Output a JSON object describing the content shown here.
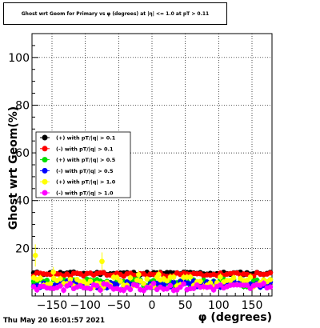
{
  "chart_data": {
    "type": "scatter",
    "title": "Ghost wrt Geom for Primary vs φ (degrees) at |η| <= 1.0 at pT > 0.11",
    "xlabel": "φ (degrees)",
    "ylabel": "Ghost wrt Geom(%)",
    "xlim": [
      -180,
      180
    ],
    "ylim": [
      0,
      110
    ],
    "x_ticks": [
      -150,
      -100,
      -50,
      0,
      50,
      100,
      150
    ],
    "x_tick_labels": [
      "−150",
      "−100",
      "−50",
      "0",
      "50",
      "100",
      "150"
    ],
    "y_ticks": [
      20,
      40,
      60,
      80,
      100
    ],
    "y_tick_labels": [
      "20",
      "40",
      "60",
      "80",
      "100"
    ],
    "grid": true,
    "legend_placement": "left-center",
    "series": [
      {
        "name": "(+) with pT/|q| > 0.1",
        "color": "#000000",
        "base": 9.5,
        "amp": 0.6,
        "seed": 11
      },
      {
        "name": "(-) with pT/|q| > 0.1",
        "color": "#ff0000",
        "base": 9.0,
        "amp": 0.8,
        "seed": 23
      },
      {
        "name": "(+) with pT/|q| > 0.5",
        "color": "#00dd00",
        "base": 5.5,
        "amp": 1.6,
        "seed": 37
      },
      {
        "name": "(-) with pT/|q| > 0.5",
        "color": "#0000ff",
        "base": 4.8,
        "amp": 1.4,
        "seed": 51
      },
      {
        "name": "(+) with pT/|q| > 1.0",
        "color": "#ffff00",
        "base": 6.0,
        "amp": 2.2,
        "seed": 67,
        "outliers": [
          [
            -175,
            17
          ],
          [
            -75,
            14.5
          ],
          [
            -148,
            10
          ],
          [
            -20,
            9
          ],
          [
            10,
            9
          ]
        ]
      },
      {
        "name": "(-) with pT/|q| > 1.0",
        "color": "#ff00ff",
        "base": 3.8,
        "amp": 1.5,
        "seed": 83
      }
    ],
    "points_per_series": 72
  },
  "footer": {
    "timestamp": "Thu May 20 16:01:57 2021"
  }
}
